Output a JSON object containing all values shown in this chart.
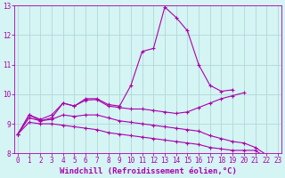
{
  "x": [
    0,
    1,
    2,
    3,
    4,
    5,
    6,
    7,
    8,
    9,
    10,
    11,
    12,
    13,
    14,
    15,
    16,
    17,
    18,
    19,
    20,
    21,
    22,
    23
  ],
  "line1": [
    8.65,
    9.3,
    9.1,
    9.2,
    9.7,
    9.6,
    9.85,
    9.85,
    9.65,
    9.6,
    10.3,
    11.45,
    11.55,
    12.95,
    12.6,
    12.15,
    11.0,
    10.3,
    10.1,
    10.15,
    null,
    null,
    null,
    null
  ],
  "line2": [
    8.65,
    9.3,
    9.15,
    9.3,
    9.7,
    9.6,
    9.8,
    9.82,
    9.6,
    9.55,
    9.5,
    9.5,
    9.45,
    9.4,
    9.35,
    9.4,
    9.55,
    9.7,
    9.85,
    9.95,
    10.05,
    null,
    null,
    null
  ],
  "line3": [
    8.65,
    9.05,
    9.0,
    9.0,
    8.95,
    8.9,
    8.85,
    8.8,
    8.7,
    8.65,
    8.6,
    8.55,
    8.5,
    8.45,
    8.4,
    8.35,
    8.3,
    8.2,
    8.15,
    8.1,
    8.1,
    8.1,
    7.85,
    7.55
  ],
  "line4": [
    8.65,
    9.2,
    9.1,
    9.15,
    9.3,
    9.25,
    9.3,
    9.3,
    9.2,
    9.1,
    9.05,
    9.0,
    8.95,
    8.9,
    8.85,
    8.8,
    8.75,
    8.6,
    8.5,
    8.4,
    8.35,
    8.2,
    7.95,
    7.55
  ],
  "color": "#aa00aa",
  "bg_color": "#d5f4f4",
  "grid_color": "#b0d8d8",
  "axis_color": "#aa00aa",
  "ylim": [
    8,
    13
  ],
  "xlim": [
    -0.3,
    23.3
  ],
  "yticks": [
    8,
    9,
    10,
    11,
    12,
    13
  ],
  "xticks": [
    0,
    1,
    2,
    3,
    4,
    5,
    6,
    7,
    8,
    9,
    10,
    11,
    12,
    13,
    14,
    15,
    16,
    17,
    18,
    19,
    20,
    21,
    22,
    23
  ],
  "xlabel": "Windchill (Refroidissement éolien,°C)",
  "marker": "+",
  "markersize": 3,
  "linewidth": 0.8,
  "xlabel_fontsize": 6.5,
  "tick_fontsize": 5.5,
  "tick_color": "#aa00aa"
}
